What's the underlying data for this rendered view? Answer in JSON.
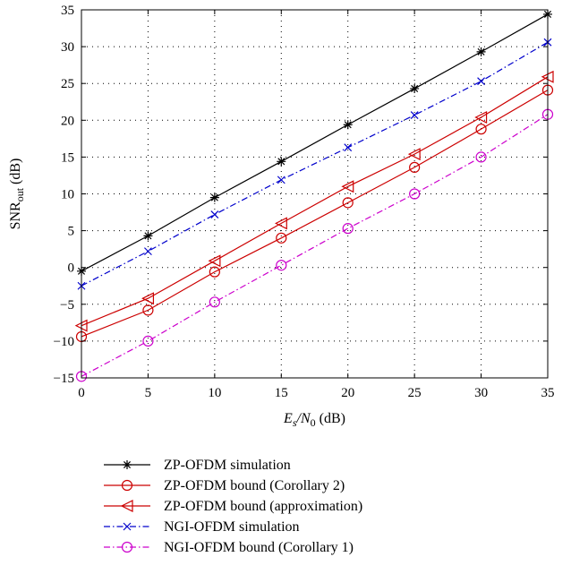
{
  "chart_data": {
    "type": "line",
    "xlabel": {
      "main": "E",
      "sub": "s",
      "mid": "/N",
      "sub2": "0",
      "unit": " (dB)"
    },
    "ylabel": {
      "main": "SNR",
      "sub": "out",
      "unit": " (dB)"
    },
    "xlim": [
      0,
      35
    ],
    "ylim": [
      -15,
      35
    ],
    "xticks": [
      0,
      5,
      10,
      15,
      20,
      25,
      30,
      35
    ],
    "yticks": [
      -15,
      -10,
      -5,
      0,
      5,
      10,
      15,
      20,
      25,
      30,
      35
    ],
    "grid": true,
    "legend_position": "below",
    "x": [
      0,
      5,
      10,
      15,
      20,
      25,
      30,
      35
    ],
    "series": [
      {
        "name": "ZP-OFDM simulation",
        "values": [
          -0.5,
          4.3,
          9.5,
          14.4,
          19.4,
          24.3,
          29.3,
          34.4
        ],
        "color": "#000000",
        "marker": "star",
        "dash": "solid"
      },
      {
        "name": "ZP-OFDM bound (Corollary 2)",
        "values": [
          -9.4,
          -5.8,
          -0.6,
          4.0,
          8.8,
          13.6,
          18.8,
          24.1
        ],
        "color": "#cc0000",
        "marker": "circle",
        "dash": "solid"
      },
      {
        "name": "ZP-OFDM bound (approximation)",
        "values": [
          -7.9,
          -4.2,
          0.9,
          6.0,
          11.0,
          15.4,
          20.4,
          25.9
        ],
        "color": "#cc0000",
        "marker": "triangle-left",
        "dash": "solid"
      },
      {
        "name": "NGI-OFDM simulation",
        "values": [
          -2.5,
          2.2,
          7.2,
          11.9,
          16.3,
          20.7,
          25.3,
          30.6
        ],
        "color": "#0000cc",
        "marker": "x",
        "dash": "dashdot"
      },
      {
        "name": "NGI-OFDM bound (Corollary 1)",
        "values": [
          -14.8,
          -10.0,
          -4.7,
          0.3,
          5.3,
          10.0,
          15.0,
          20.8
        ],
        "color": "#cc00cc",
        "marker": "circle",
        "dash": "dashdot"
      }
    ]
  }
}
